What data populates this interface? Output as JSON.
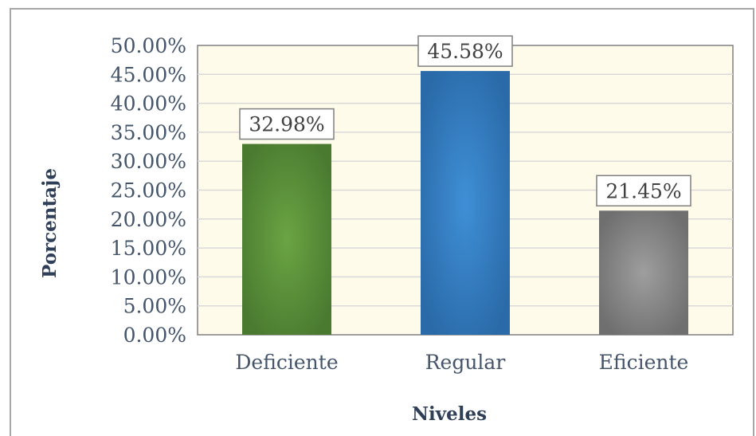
{
  "chart_data": {
    "type": "bar",
    "categories": [
      "Deficiente",
      "Regular",
      "Eficiente"
    ],
    "values": [
      32.98,
      45.58,
      21.45
    ],
    "data_labels": [
      "32.98%",
      "45.58%",
      "21.45%"
    ],
    "xlabel": "Niveles",
    "ylabel": "Porcentaje",
    "ylim": [
      0,
      50
    ],
    "yticks": [
      "0.00%",
      "5.00%",
      "10.00%",
      "15.00%",
      "20.00%",
      "25.00%",
      "30.00%",
      "35.00%",
      "40.00%",
      "45.00%",
      "50.00%"
    ],
    "grid": true,
    "colors": {
      "plot_background": "#fffbeb",
      "gridline": "#d9d9d9",
      "bars": [
        {
          "center": "#6aa443",
          "edge": "#4a7a30"
        },
        {
          "center": "#3f8fd6",
          "edge": "#2a6aa8"
        },
        {
          "center": "#9e9e9e",
          "edge": "#6f6f6f"
        }
      ]
    }
  }
}
